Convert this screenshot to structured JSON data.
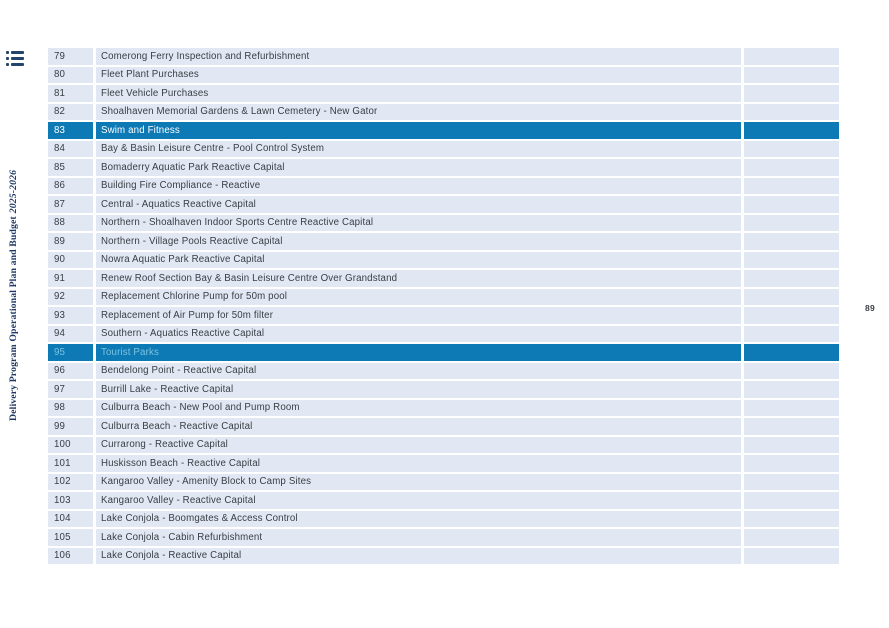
{
  "page": {
    "number": "89"
  },
  "sidebar": {
    "title": "Delivery Program Operational Plan and Budget",
    "years": "2025-2026"
  },
  "icons": {
    "toc": "list-icon"
  },
  "colors": {
    "row_bg": "#e2e8f3",
    "highlight_bg": "#0d79b5",
    "highlight_text": "#ffffff",
    "highlight_text_dim": "#7cc3e0",
    "body_text": "#393d44",
    "sidebar_text": "#1f3864",
    "page_bg": "#ffffff"
  },
  "table": {
    "rows": [
      {
        "num": "79",
        "desc": "Comerong Ferry Inspection and Refurbishment",
        "variant": "default"
      },
      {
        "num": "80",
        "desc": "Fleet Plant Purchases",
        "variant": "default"
      },
      {
        "num": "81",
        "desc": "Fleet Vehicle Purchases",
        "variant": "default"
      },
      {
        "num": "82",
        "desc": "Shoalhaven Memorial Gardens & Lawn Cemetery - New Gator",
        "variant": "default"
      },
      {
        "num": "83",
        "desc": "Swim and Fitness",
        "variant": "selected"
      },
      {
        "num": "84",
        "desc": "Bay & Basin Leisure Centre - Pool Control System",
        "variant": "default"
      },
      {
        "num": "85",
        "desc": "Bomaderry Aquatic Park Reactive Capital",
        "variant": "default"
      },
      {
        "num": "86",
        "desc": "Building Fire Compliance - Reactive",
        "variant": "default"
      },
      {
        "num": "87",
        "desc": "Central - Aquatics Reactive Capital",
        "variant": "default"
      },
      {
        "num": "88",
        "desc": "Northern - Shoalhaven Indoor Sports Centre Reactive Capital",
        "variant": "default"
      },
      {
        "num": "89",
        "desc": "Northern - Village Pools Reactive Capital",
        "variant": "default"
      },
      {
        "num": "90",
        "desc": "Nowra Aquatic Park Reactive Capital",
        "variant": "default"
      },
      {
        "num": "91",
        "desc": "Renew Roof Section Bay & Basin Leisure Centre Over Grandstand",
        "variant": "default"
      },
      {
        "num": "92",
        "desc": "Replacement Chlorine Pump for 50m pool",
        "variant": "default"
      },
      {
        "num": "93",
        "desc": "Replacement of Air Pump for 50m filter",
        "variant": "default"
      },
      {
        "num": "94",
        "desc": "Southern - Aquatics Reactive Capital",
        "variant": "default"
      },
      {
        "num": "95",
        "desc": "Tourist Parks",
        "variant": "selected-dim"
      },
      {
        "num": "96",
        "desc": "Bendelong Point - Reactive Capital",
        "variant": "default"
      },
      {
        "num": "97",
        "desc": "Burrill Lake - Reactive Capital",
        "variant": "default"
      },
      {
        "num": "98",
        "desc": "Culburra Beach - New Pool and Pump Room",
        "variant": "default"
      },
      {
        "num": "99",
        "desc": "Culburra Beach - Reactive Capital",
        "variant": "default"
      },
      {
        "num": "100",
        "desc": "Currarong - Reactive Capital",
        "variant": "default"
      },
      {
        "num": "101",
        "desc": "Huskisson Beach - Reactive Capital",
        "variant": "default"
      },
      {
        "num": "102",
        "desc": "Kangaroo Valley - Amenity Block to Camp Sites",
        "variant": "default"
      },
      {
        "num": "103",
        "desc": "Kangaroo Valley - Reactive Capital",
        "variant": "default"
      },
      {
        "num": "104",
        "desc": "Lake Conjola - Boomgates & Access Control",
        "variant": "default"
      },
      {
        "num": "105",
        "desc": "Lake Conjola - Cabin Refurbishment",
        "variant": "default"
      },
      {
        "num": "106",
        "desc": "Lake Conjola - Reactive Capital",
        "variant": "default"
      }
    ]
  }
}
